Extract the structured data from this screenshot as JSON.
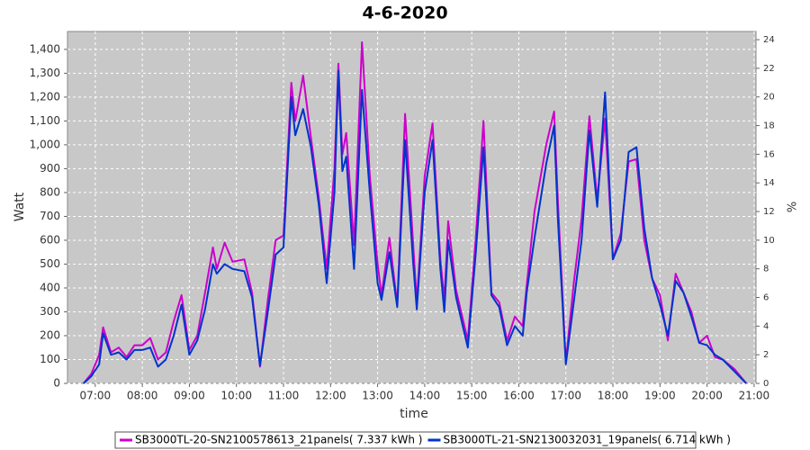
{
  "chart_data": {
    "type": "line",
    "title": "4-6-2020",
    "xlabel": "time",
    "ylabel": "Watt",
    "y2label": "%",
    "x": [
      6.75,
      6.917,
      7.083,
      7.167,
      7.333,
      7.5,
      7.667,
      7.833,
      8,
      8.167,
      8.333,
      8.5,
      8.667,
      8.833,
      9,
      9.167,
      9.333,
      9.5,
      9.583,
      9.75,
      9.917,
      10.167,
      10.333,
      10.5,
      10.667,
      10.833,
      11,
      11.167,
      11.25,
      11.417,
      11.583,
      11.75,
      11.917,
      12.083,
      12.167,
      12.25,
      12.333,
      12.5,
      12.667,
      12.833,
      13,
      13.083,
      13.25,
      13.417,
      13.583,
      13.75,
      13.833,
      14,
      14.167,
      14.333,
      14.417,
      14.5,
      14.667,
      14.917,
      15.083,
      15.25,
      15.417,
      15.583,
      15.75,
      15.917,
      16.083,
      16.167,
      16.333,
      16.583,
      16.75,
      16.833,
      17,
      17.167,
      17.333,
      17.5,
      17.667,
      17.833,
      18,
      18.167,
      18.333,
      18.5,
      18.667,
      18.833,
      19,
      19.167,
      19.333,
      19.5,
      19.667,
      19.833,
      20,
      20.167,
      20.333,
      20.583,
      20.833
    ],
    "series": [
      {
        "name": "SB3000TL-20-SN2100578613_21panels( 7.337 kWh )",
        "color": "#cc00cc",
        "values": [
          0,
          40,
          120,
          235,
          130,
          150,
          110,
          160,
          160,
          190,
          100,
          130,
          260,
          370,
          140,
          200,
          380,
          570,
          480,
          590,
          510,
          520,
          380,
          70,
          350,
          600,
          620,
          1260,
          1100,
          1290,
          1030,
          780,
          480,
          900,
          1340,
          960,
          1050,
          580,
          1430,
          870,
          500,
          370,
          610,
          330,
          1130,
          600,
          340,
          870,
          1090,
          520,
          350,
          680,
          390,
          180,
          600,
          1100,
          380,
          340,
          180,
          280,
          240,
          410,
          720,
          1000,
          1140,
          750,
          90,
          420,
          690,
          1120,
          770,
          1110,
          520,
          630,
          930,
          940,
          600,
          440,
          370,
          180,
          460,
          380,
          300,
          170,
          200,
          110,
          100,
          60,
          0
        ]
      },
      {
        "name": "SB3000TL-21-SN2130032031_19panels( 6.714 kWh )",
        "color": "#0033cc",
        "values": [
          0,
          30,
          80,
          210,
          120,
          130,
          100,
          140,
          140,
          150,
          70,
          100,
          200,
          330,
          120,
          180,
          310,
          500,
          460,
          500,
          480,
          470,
          360,
          75,
          300,
          540,
          570,
          1200,
          1040,
          1150,
          990,
          750,
          420,
          800,
          1310,
          890,
          950,
          480,
          1230,
          800,
          420,
          350,
          550,
          320,
          1020,
          520,
          310,
          800,
          1020,
          480,
          300,
          600,
          360,
          150,
          540,
          990,
          370,
          320,
          160,
          240,
          200,
          380,
          610,
          920,
          1080,
          680,
          80,
          340,
          600,
          1060,
          740,
          1220,
          520,
          600,
          970,
          990,
          650,
          440,
          330,
          200,
          430,
          380,
          280,
          170,
          160,
          120,
          100,
          50,
          0
        ]
      }
    ],
    "xlim": [
      6.41,
      21.04
    ],
    "xticks": [
      {
        "value": 7,
        "label": "07:00"
      },
      {
        "value": 8,
        "label": "08:00"
      },
      {
        "value": 9,
        "label": "09:00"
      },
      {
        "value": 10,
        "label": "10:00"
      },
      {
        "value": 11,
        "label": "11:00"
      },
      {
        "value": 12,
        "label": "12:00"
      },
      {
        "value": 13,
        "label": "13:00"
      },
      {
        "value": 14,
        "label": "14:00"
      },
      {
        "value": 15,
        "label": "15:00"
      },
      {
        "value": 16,
        "label": "16:00"
      },
      {
        "value": 17,
        "label": "17:00"
      },
      {
        "value": 18,
        "label": "18:00"
      },
      {
        "value": 19,
        "label": "19:00"
      },
      {
        "value": 20,
        "label": "20:00"
      },
      {
        "value": 21,
        "label": "21:00"
      }
    ],
    "ylim": [
      0,
      1475
    ],
    "yticks": [
      0,
      100,
      200,
      300,
      400,
      500,
      600,
      700,
      800,
      900,
      {
        "value": 1000,
        "label": "1,000"
      },
      {
        "value": 1100,
        "label": "1,100"
      },
      {
        "value": 1200,
        "label": "1,200"
      },
      {
        "value": 1300,
        "label": "1,300"
      },
      {
        "value": 1400,
        "label": "1,400"
      }
    ],
    "y2lim": [
      0,
      24.57
    ],
    "y2ticks": [
      0,
      2,
      4,
      6,
      8,
      10,
      12,
      14,
      16,
      18,
      20,
      22,
      24
    ],
    "grid": true
  }
}
